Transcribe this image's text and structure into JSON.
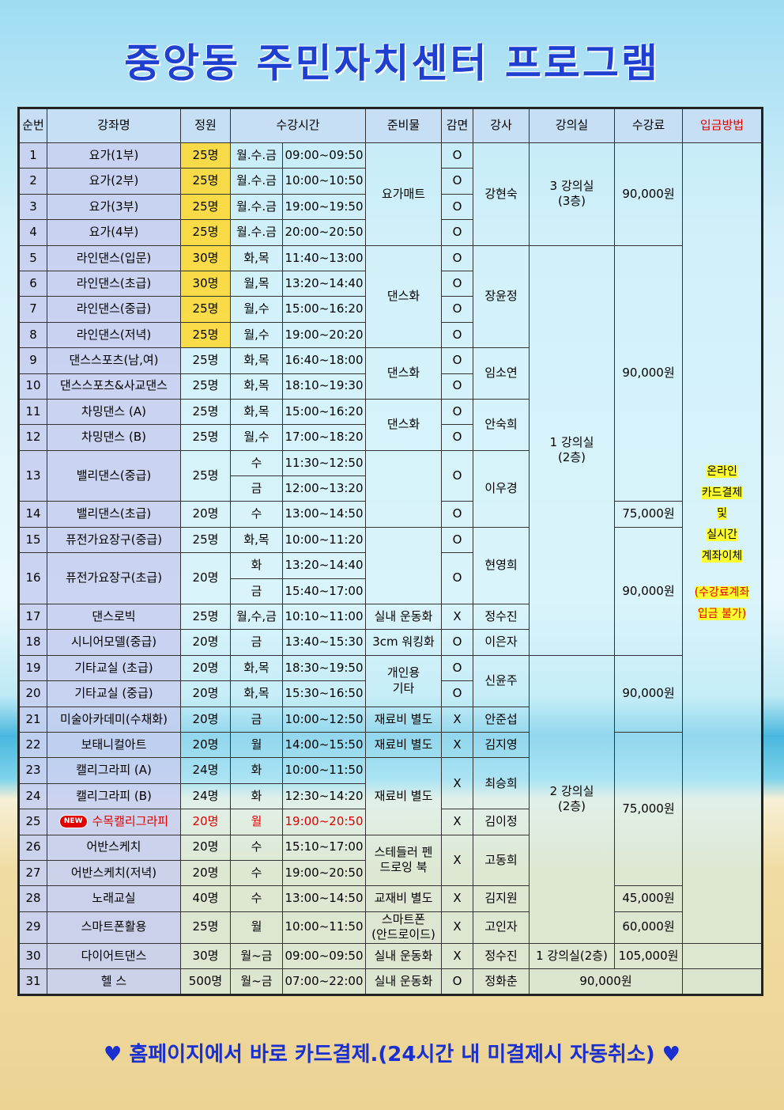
{
  "title": "중앙동 주민자치센터 프로그램",
  "table": {
    "header": [
      "순번",
      "강좌명",
      "정원",
      "수강시간",
      "준비물",
      "감면",
      "강사",
      "강의실",
      "수강료",
      "입금방법"
    ],
    "new_badge": "NEW",
    "payment": {
      "method": "온라인\n카드결제\n및\n실시간\n계좌이체",
      "note": "(수강료계좌\n입금 불가)"
    },
    "rows": [
      [
        "1",
        "요가(1부)",
        "25명",
        "월.수.금",
        "09:00~09:50",
        "요가매트",
        "O",
        "강현숙",
        "3 강의실\n(3층)",
        "90,000원"
      ],
      [
        "2",
        "요가(2부)",
        "25명",
        "월.수.금",
        "10:00~10:50",
        "O"
      ],
      [
        "3",
        "요가(3부)",
        "25명",
        "월.수.금",
        "19:00~19:50",
        "O"
      ],
      [
        "4",
        "요가(4부)",
        "25명",
        "월.수.금",
        "20:00~20:50",
        "O"
      ],
      [
        "5",
        "라인댄스(입문)",
        "30명",
        "화,목",
        "11:40~13:00",
        "댄스화",
        "O",
        "장윤정",
        "1 강의실\n(2층)",
        "90,000원"
      ],
      [
        "6",
        "라인댄스(초급)",
        "30명",
        "월,목",
        "13:20~14:40",
        "O"
      ],
      [
        "7",
        "라인댄스(중급)",
        "25명",
        "월,수",
        "15:00~16:20",
        "O"
      ],
      [
        "8",
        "라인댄스(저녁)",
        "25명",
        "월,수",
        "19:00~20:20",
        "O"
      ],
      [
        "9",
        "댄스스포츠(남,여)",
        "25명",
        "화,목",
        "16:40~18:00",
        "댄스화",
        "O",
        "임소연"
      ],
      [
        "10",
        "댄스스포츠&사교댄스",
        "25명",
        "화,목",
        "18:10~19:30",
        "O"
      ],
      [
        "11",
        "차밍댄스 (A)",
        "25명",
        "화,목",
        "15:00~16:20",
        "댄스화",
        "O",
        "안숙희"
      ],
      [
        "12",
        "차밍댄스 (B)",
        "25명",
        "월,수",
        "17:00~18:20",
        "O"
      ],
      [
        "13",
        "밸리댄스(중급)",
        "25명",
        "수",
        "11:30~12:50",
        "O",
        "이우경"
      ],
      [
        "금",
        "12:00~13:20"
      ],
      [
        "14",
        "밸리댄스(초급)",
        "20명",
        "수",
        "13:00~14:50",
        "O",
        "75,000원"
      ],
      [
        "15",
        "퓨전가요장구(중급)",
        "25명",
        "화,목",
        "10:00~11:20",
        "O",
        "현영희",
        "90,000원"
      ],
      [
        "16",
        "퓨전가요장구(초급)",
        "20명",
        "화",
        "13:20~14:40",
        "O"
      ],
      [
        "금",
        "15:40~17:00"
      ],
      [
        "17",
        "댄스로빅",
        "25명",
        "월,수,금",
        "10:10~11:00",
        "실내 운동화",
        "X",
        "정수진"
      ],
      [
        "18",
        "시니어모델(중급)",
        "20명",
        "금",
        "13:40~15:30",
        "3cm 워킹화",
        "O",
        "이은자"
      ],
      [
        "19",
        "기타교실 (초급)",
        "20명",
        "화,목",
        "18:30~19:50",
        "개인용\n기타",
        "O",
        "신윤주",
        "2 강의실\n(2층)",
        "90,000원"
      ],
      [
        "20",
        "기타교실 (중급)",
        "20명",
        "화,목",
        "15:30~16:50",
        "O"
      ],
      [
        "21",
        "미술아카데미(수채화)",
        "20명",
        "금",
        "10:00~12:50",
        "재료비 별도",
        "X",
        "안준섭"
      ],
      [
        "22",
        "보태니컬아트",
        "20명",
        "월",
        "14:00~15:50",
        "재료비 별도",
        "X",
        "김지영",
        "75,000원"
      ],
      [
        "23",
        "캘리그라피 (A)",
        "24명",
        "화",
        "10:00~11:50",
        "재료비 별도",
        "X",
        "최승희"
      ],
      [
        "24",
        "캘리그라피 (B)",
        "24명",
        "화",
        "12:30~14:20"
      ],
      [
        "25",
        "수목캘리그라피",
        "20명",
        "월",
        "19:00~20:50",
        "X",
        "김이정"
      ],
      [
        "26",
        "어반스케치",
        "20명",
        "수",
        "15:10~17:00",
        "스테들러 펜\n드로잉 북",
        "X",
        "고동희"
      ],
      [
        "27",
        "어반스케치(저녁)",
        "20명",
        "수",
        "19:00~20:50"
      ],
      [
        "28",
        "노래교실",
        "40명",
        "수",
        "13:00~14:50",
        "교재비 별도",
        "X",
        "김지원",
        "45,000원"
      ],
      [
        "29",
        "스마트폰활용",
        "25명",
        "월",
        "10:00~11:50",
        "스마트폰\n(안드로이드)",
        "X",
        "고인자",
        "60,000원"
      ],
      [
        "30",
        "다이어트댄스",
        "30명",
        "월~금",
        "09:00~09:50",
        "실내 운동화",
        "X",
        "정수진",
        "1 강의실(2층)",
        "105,000원"
      ],
      [
        "31",
        "헬 스",
        "500명",
        "월~금",
        "07:00~22:00",
        "실내 운동화",
        "O",
        "정화춘",
        "90,000원"
      ]
    ]
  },
  "footer": "♥ 홈페이지에서 바로 카드결제.(24시간 내 미결제시 자동취소) ♥"
}
